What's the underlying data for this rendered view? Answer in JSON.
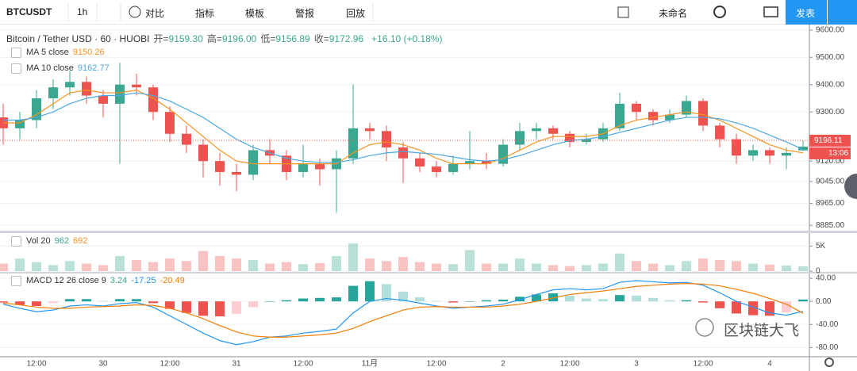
{
  "toolbar": {
    "symbol": "BTCUSDT",
    "interval": "1h",
    "items": [
      "对比",
      "指标",
      "模板",
      "警报",
      "回放"
    ],
    "layout_name": "未命名",
    "publish": "发表"
  },
  "chart_data": [
    {
      "type": "candlestick",
      "title": "Bitcoin / Tether USD · 60 · HUOBI",
      "stats": [
        {
          "label": "开=",
          "text": "9159.30"
        },
        {
          "label": "高=",
          "text": "9196.00"
        },
        {
          "label": "低=",
          "text": "9156.89"
        },
        {
          "label": "收=",
          "text": "9172.96"
        }
      ],
      "change": "+16.10 (+0.18%)",
      "categories": [
        null,
        null,
        "12:00",
        null,
        null,
        null,
        "30",
        null,
        null,
        null,
        "12:00",
        null,
        null,
        null,
        "31",
        null,
        null,
        null,
        "12:00",
        null,
        null,
        null,
        "11月",
        null,
        null,
        null,
        "12:00",
        null,
        null,
        null,
        "2",
        null,
        null,
        null,
        "12:00",
        null,
        null,
        null,
        "3",
        null,
        null,
        null,
        "12:00",
        null,
        null,
        null,
        "4",
        null,
        null
      ],
      "open": [
        9280,
        9240,
        9270,
        9350,
        9390,
        9410,
        9360,
        9330,
        9400,
        9390,
        9300,
        9220,
        9180,
        9120,
        9080,
        9070,
        9160,
        9140,
        9080,
        9110,
        9090,
        9130,
        9240,
        9230,
        9170,
        9130,
        9100,
        9080,
        9110,
        9120,
        9110,
        9180,
        9230,
        9240,
        9220,
        9190,
        9200,
        9240,
        9330,
        9300,
        9270,
        9290,
        9340,
        9250,
        9200,
        9140,
        9160,
        9140,
        9159.3
      ],
      "high": [
        9330,
        9300,
        9380,
        9420,
        9450,
        9430,
        9380,
        9480,
        9440,
        9400,
        9320,
        9250,
        9200,
        9150,
        9110,
        9180,
        9200,
        9160,
        9180,
        9130,
        9160,
        9400,
        9260,
        9250,
        9190,
        9150,
        9120,
        9140,
        9230,
        9150,
        9200,
        9260,
        9260,
        9250,
        9230,
        9220,
        9260,
        9370,
        9340,
        9310,
        9310,
        9360,
        9350,
        9260,
        9220,
        9180,
        9170,
        9170,
        9196
      ],
      "low": [
        9180,
        9200,
        9240,
        9310,
        9360,
        9330,
        9280,
        9110,
        9360,
        9270,
        9190,
        9150,
        9060,
        9030,
        9010,
        9050,
        9110,
        9050,
        9060,
        9030,
        8930,
        9110,
        9200,
        9120,
        9040,
        9080,
        9060,
        9070,
        9090,
        9090,
        9100,
        9160,
        9200,
        9200,
        9170,
        9180,
        9190,
        9230,
        9270,
        9250,
        9260,
        9280,
        9230,
        9170,
        9110,
        9120,
        9110,
        9090,
        9156.89
      ],
      "close": [
        9240,
        9270,
        9350,
        9390,
        9410,
        9360,
        9330,
        9400,
        9390,
        9300,
        9220,
        9180,
        9120,
        9080,
        9070,
        9160,
        9140,
        9080,
        9110,
        9090,
        9130,
        9240,
        9230,
        9170,
        9130,
        9100,
        9080,
        9110,
        9120,
        9110,
        9180,
        9230,
        9240,
        9220,
        9190,
        9200,
        9240,
        9330,
        9300,
        9270,
        9290,
        9340,
        9250,
        9200,
        9140,
        9160,
        9140,
        9150,
        9172.96
      ],
      "series": [
        {
          "name": "MA 5 close",
          "color": "#f7931e",
          "last_value": 9150.26,
          "values": [
            9260,
            9260,
            9290,
            9330,
            9370,
            9380,
            9370,
            9370,
            9380,
            9350,
            9310,
            9260,
            9210,
            9160,
            9120,
            9110,
            9110,
            9110,
            9110,
            9110,
            9110,
            9150,
            9180,
            9190,
            9180,
            9160,
            9130,
            9110,
            9110,
            9110,
            9130,
            9160,
            9190,
            9210,
            9210,
            9210,
            9220,
            9250,
            9270,
            9280,
            9290,
            9300,
            9290,
            9270,
            9240,
            9210,
            9180,
            9160,
            9150.26
          ]
        },
        {
          "name": "MA 10 close",
          "color": "#4aa8e0",
          "last_value": 9162.77,
          "values": [
            9270,
            9270,
            9280,
            9300,
            9330,
            9350,
            9360,
            9360,
            9370,
            9360,
            9340,
            9310,
            9280,
            9240,
            9200,
            9170,
            9150,
            9130,
            9120,
            9115,
            9115,
            9125,
            9140,
            9150,
            9155,
            9150,
            9145,
            9135,
            9125,
            9120,
            9125,
            9140,
            9160,
            9180,
            9195,
            9200,
            9210,
            9225,
            9240,
            9255,
            9270,
            9280,
            9280,
            9275,
            9260,
            9240,
            9215,
            9190,
            9162.77
          ]
        }
      ],
      "up_color": "#3aa890",
      "down_color": "#ef5350",
      "ylim": [
        8868,
        9617
      ],
      "yticks": [
        {
          "value": 9600,
          "label": "9600.00"
        },
        {
          "value": 9500,
          "label": "9500.00"
        },
        {
          "value": 9400,
          "label": "9400.00"
        },
        {
          "value": 9300,
          "label": "9300.00"
        },
        {
          "value": 9120,
          "label": "9120.00"
        },
        {
          "value": 9045,
          "label": "9045.00"
        },
        {
          "value": 8965,
          "label": "8965.00"
        },
        {
          "value": 8885,
          "label": "8885.00"
        }
      ],
      "last_price": {
        "value": 9196.11,
        "label": "9196.11"
      },
      "countdown": "13:06"
    },
    {
      "type": "bar",
      "title": "Vol 20",
      "legend_values": [
        962,
        692
      ],
      "legend_colors": [
        "#3aa890",
        "#f7931e"
      ],
      "values": [
        1500,
        2500,
        1800,
        1200,
        2000,
        1500,
        1200,
        3000,
        2200,
        1800,
        2500,
        2000,
        4000,
        3000,
        2500,
        2200,
        1500,
        1800,
        1400,
        1600,
        3000,
        5500,
        2500,
        2000,
        2800,
        1800,
        1500,
        1400,
        4200,
        1500,
        1500,
        2500,
        1500,
        1200,
        1000,
        1200,
        1500,
        3500,
        2000,
        1500,
        1200,
        2000,
        2500,
        2200,
        2000,
        1500,
        1300,
        1100,
        962
      ],
      "ylim": [
        0,
        7100
      ],
      "yticks": [
        {
          "value": 5000,
          "label": "5K"
        },
        0
      ]
    },
    {
      "type": "macd",
      "title": "MACD 12 26 close 9",
      "legend_colors": [
        "#3aa890",
        "#2196f3",
        "#f57c00"
      ],
      "legend_values": [
        3.24,
        -17.25,
        -20.49
      ],
      "histogram": [
        -2,
        -6,
        -8,
        -3,
        4,
        4,
        1,
        4,
        4,
        -3,
        -13,
        -20,
        -25,
        -26,
        -22,
        -10,
        0,
        2,
        5,
        6,
        7,
        27,
        35,
        30,
        17,
        7,
        1,
        -2,
        0,
        2,
        3,
        8,
        12,
        14,
        10,
        5,
        4,
        11,
        10,
        6,
        2,
        2,
        -2,
        -12,
        -21,
        -24,
        -25,
        -19,
        3.24
      ],
      "series": [
        {
          "name": "MACD",
          "color": "#2196f3",
          "values": [
            -5,
            -12,
            -18,
            -15,
            -8,
            -6,
            -8,
            -4,
            -2,
            -10,
            -25,
            -40,
            -55,
            -68,
            -75,
            -70,
            -62,
            -60,
            -55,
            -52,
            -48,
            -20,
            0,
            5,
            2,
            -3,
            -8,
            -12,
            -10,
            -8,
            -5,
            3,
            12,
            20,
            22,
            20,
            22,
            33,
            36,
            34,
            32,
            33,
            28,
            15,
            0,
            -10,
            -20,
            -24,
            -17.25
          ]
        },
        {
          "name": "Signal",
          "color": "#f57c00",
          "values": [
            -3,
            -6,
            -10,
            -12,
            -12,
            -10,
            -9,
            -8,
            -6,
            -7,
            -12,
            -20,
            -30,
            -42,
            -53,
            -60,
            -62,
            -62,
            -60,
            -58,
            -55,
            -47,
            -35,
            -25,
            -15,
            -10,
            -9,
            -10,
            -10,
            -10,
            -8,
            -5,
            0,
            6,
            12,
            15,
            18,
            22,
            26,
            28,
            30,
            31,
            30,
            27,
            21,
            14,
            5,
            -5,
            -20.49
          ]
        }
      ],
      "ylim": [
        -96,
        47
      ],
      "yticks": [
        {
          "value": 40,
          "label": "40.00"
        },
        {
          "value": 0,
          "label": "0.00"
        },
        {
          "value": -40,
          "label": "-40.00"
        },
        {
          "value": -80,
          "label": "-80.00"
        }
      ]
    }
  ],
  "watermark": "区块链大飞"
}
